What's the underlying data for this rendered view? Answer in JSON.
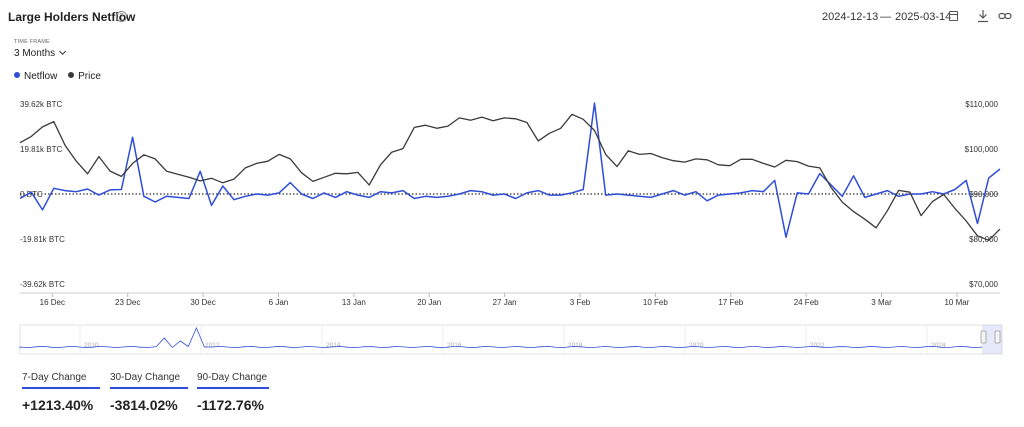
{
  "header": {
    "title": "Large Holders Netflow",
    "date_start": "2024-12-13",
    "date_dash": "—",
    "date_end": "2025-03-14"
  },
  "timeframe": {
    "label": "TIME FRAME",
    "selected": "3 Months"
  },
  "legend": [
    {
      "name": "Netflow",
      "color": "#2f4ed8"
    },
    {
      "name": "Price",
      "color": "#3a3a3a"
    }
  ],
  "navigator": {
    "year_labels": [
      "2010",
      "2012",
      "2014",
      "2016",
      "2018",
      "2020",
      "2022",
      "2024"
    ]
  },
  "stats": [
    {
      "label": "7-Day Change",
      "value": "+1213.40%"
    },
    {
      "label": "30-Day Change",
      "value": "-3814.02%"
    },
    {
      "label": "90-Day Change",
      "value": "-1172.76%"
    }
  ],
  "chart_data": {
    "type": "line",
    "title": "Large Holders Netflow",
    "x_tick_labels": [
      "16 Dec",
      "23 Dec",
      "30 Dec",
      "6 Jan",
      "13 Jan",
      "20 Jan",
      "27 Jan",
      "3 Feb",
      "10 Feb",
      "17 Feb",
      "24 Feb",
      "3 Mar",
      "10 Mar"
    ],
    "x_start": "2024-12-13",
    "x_end": "2025-03-14",
    "left_axis": {
      "tick_labels": [
        "39.62k BTC",
        "19.81k BTC",
        "0 BTC",
        "-19.81k BTC",
        "-39.62k BTC"
      ],
      "range": [
        -39620,
        39620
      ],
      "unit": "BTC"
    },
    "right_axis": {
      "tick_labels": [
        "$110,000",
        "$100,000",
        "$90,000",
        "$80,000",
        "$70,000"
      ],
      "range": [
        70000,
        110000
      ],
      "unit": "USD"
    },
    "zero_line": "dotted",
    "grid": false,
    "series": [
      {
        "name": "Netflow",
        "axis": "left",
        "color": "#2f4ed8",
        "values": [
          -2000,
          800,
          -7000,
          2500,
          1500,
          1000,
          2200,
          -500,
          1800,
          2000,
          25000,
          -1000,
          -3500,
          -1000,
          -1500,
          -2000,
          10000,
          -5000,
          3500,
          -2500,
          -1000,
          0,
          -500,
          500,
          5000,
          0,
          -2000,
          500,
          -1500,
          1000,
          -500,
          -1500,
          1000,
          500,
          1500,
          -2000,
          -1000,
          -1500,
          -1000,
          0,
          1500,
          1000,
          -500,
          0,
          -2000,
          500,
          1500,
          -500,
          -500,
          500,
          2000,
          40000,
          -500,
          0,
          -500,
          -1000,
          -1500,
          0,
          1500,
          -500,
          1000,
          -3000,
          -500,
          0,
          500,
          1500,
          1000,
          6000,
          -19000,
          500,
          0,
          9000,
          4000,
          -1000,
          8000,
          -1500,
          0,
          1500,
          -1000,
          0,
          0,
          1000,
          0,
          2000,
          6000,
          -13000,
          7000,
          11000
        ]
      },
      {
        "name": "Price",
        "axis": "right",
        "color": "#3a3a3a",
        "values": [
          101400,
          102800,
          104900,
          106100,
          100800,
          97300,
          94500,
          98300,
          95100,
          93900,
          96800,
          98700,
          97800,
          95100,
          94400,
          93700,
          92900,
          93500,
          92500,
          93300,
          95800,
          96800,
          97300,
          98800,
          97800,
          94700,
          92800,
          93700,
          94600,
          94500,
          94800,
          92000,
          96500,
          99300,
          100100,
          104800,
          105300,
          104600,
          105100,
          106900,
          106400,
          107100,
          106300,
          106900,
          106700,
          105900,
          101800,
          103500,
          104600,
          107700,
          106600,
          104100,
          98800,
          96100,
          99600,
          98800,
          99000,
          98100,
          97400,
          97100,
          97800,
          97600,
          96500,
          96300,
          97700,
          97700,
          96800,
          96000,
          97500,
          97200,
          96200,
          95800,
          91500,
          88200,
          86100,
          84400,
          82500,
          86300,
          90800,
          90400,
          85200,
          88300,
          89900,
          86800,
          84000,
          80700,
          79700,
          82200
        ]
      }
    ]
  }
}
